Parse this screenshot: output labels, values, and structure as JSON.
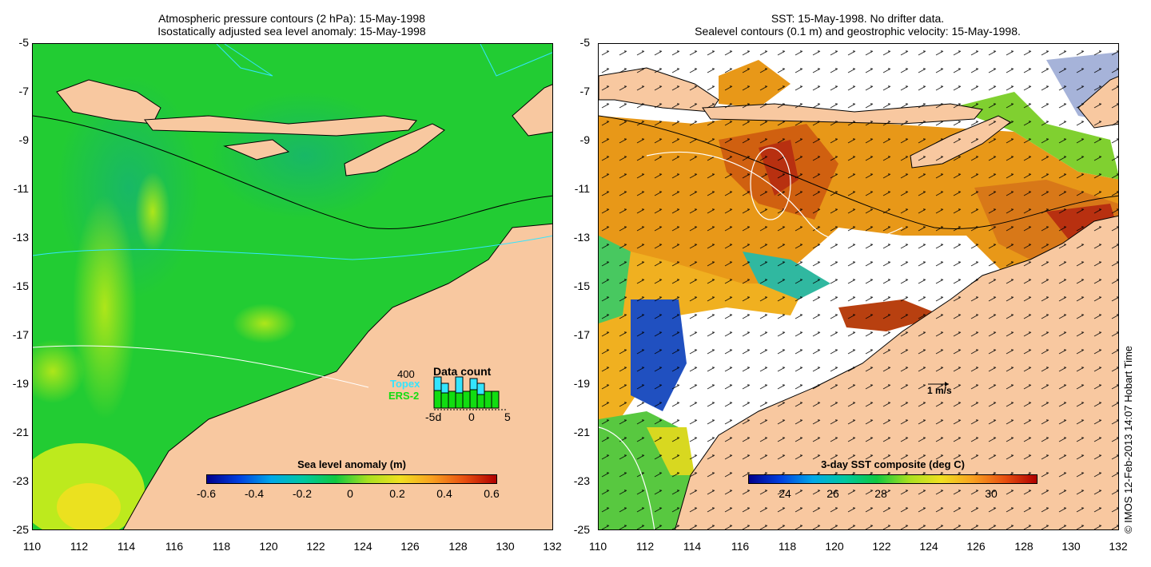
{
  "left_panel": {
    "title_line1": "Atmospheric pressure contours (2 hPa): 15-May-1998",
    "title_line2": "Isostatically adjusted sea level anomaly: 15-May-1998",
    "colorbar": {
      "title": "Sea level anomaly (m)",
      "labels": [
        "-0.6",
        "-0.4",
        "-0.2",
        "0",
        "0.2",
        "0.4",
        "0.6"
      ]
    },
    "data_count": {
      "title": "Data count",
      "max_label": "400",
      "series": [
        "Topex",
        "ERS-2"
      ],
      "axis_labels": [
        "-5d",
        "0",
        "5"
      ],
      "colors": {
        "Topex": "#33e5ff",
        "ERS-2": "#11dd11"
      }
    }
  },
  "right_panel": {
    "title_line1": "SST: 15-May-1998. No drifter data.",
    "title_line2": "Sealevel contours (0.1 m) and geostrophic velocity: 15-May-1998.",
    "colorbar": {
      "title": "3-day SST composite (deg C)",
      "labels": [
        "24",
        "26",
        "28",
        "30"
      ]
    },
    "scale_label": "1 m/s"
  },
  "axes": {
    "y_ticks": [
      "-5",
      "-7",
      "-9",
      "-11",
      "-13",
      "-15",
      "-17",
      "-19",
      "-21",
      "-23",
      "-25"
    ],
    "x_ticks": [
      "110",
      "112",
      "114",
      "116",
      "118",
      "120",
      "122",
      "124",
      "126",
      "128",
      "130",
      "132"
    ]
  },
  "credit": "© IMOS 12-Feb-2013 14:07 Hobart Time",
  "colors": {
    "land": "#f8c8a0",
    "ocean_left": "#22cc33",
    "background": "#ffffff"
  }
}
